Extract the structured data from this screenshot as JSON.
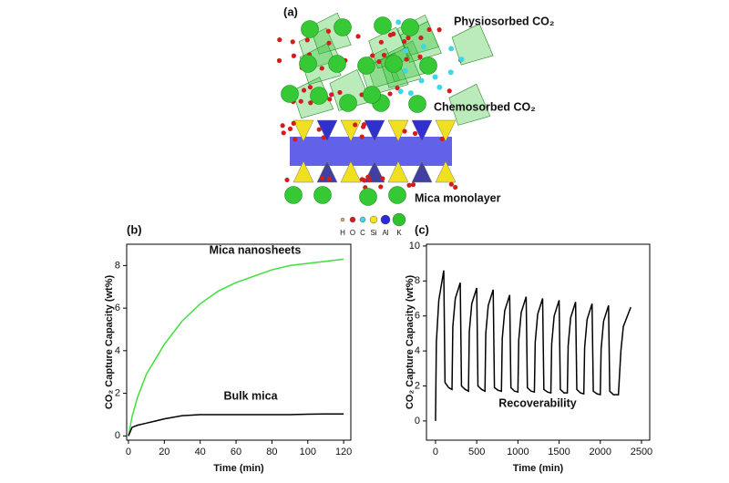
{
  "figure": {
    "panel_a": {
      "label": "(a)",
      "annotations": [
        "Physiosorbed CO₂",
        "Chemosorbed CO₂",
        "Mica monolayer"
      ],
      "legend": [
        {
          "label": "H",
          "color": "#c8b37a"
        },
        {
          "label": "O",
          "color": "#d41c1c"
        },
        {
          "label": "C",
          "color": "#3fd6e6"
        },
        {
          "label": "Si",
          "color": "#f2e21a"
        },
        {
          "label": "Al",
          "color": "#2a2ad8"
        },
        {
          "label": "K",
          "color": "#2fc42f"
        }
      ]
    }
  },
  "chart_data": [
    {
      "type": "line",
      "panel_label": "(b)",
      "xlabel": "Time (min)",
      "ylabel": "CO₂ Capture Capacity (wt%)",
      "x": [
        0,
        2,
        5,
        10,
        15,
        20,
        30,
        40,
        50,
        60,
        70,
        80,
        90,
        100,
        110,
        120
      ],
      "series": [
        {
          "name": "Mica nanosheets",
          "color": "#3ee03e",
          "values": [
            0,
            0.9,
            1.8,
            2.9,
            3.6,
            4.3,
            5.4,
            6.2,
            6.8,
            7.2,
            7.5,
            7.8,
            8.0,
            8.1,
            8.2,
            8.3
          ]
        },
        {
          "name": "Bulk mica",
          "color": "#000000",
          "values": [
            0,
            0.4,
            0.5,
            0.6,
            0.7,
            0.8,
            0.95,
            1.0,
            1.0,
            1.0,
            1.0,
            1.0,
            1.0,
            1.02,
            1.03,
            1.03
          ]
        }
      ],
      "xlim": [
        -1,
        124
      ],
      "ylim": [
        -0.2,
        9
      ],
      "xticks": [
        0,
        20,
        40,
        60,
        80,
        100,
        120
      ],
      "yticks": [
        0,
        2,
        4,
        6,
        8
      ]
    },
    {
      "type": "line",
      "panel_label": "(c)",
      "xlabel": "Time (min)",
      "ylabel": "CO₂ Capture Capacity (wt%)",
      "x": [
        0,
        10,
        40,
        100,
        115,
        160,
        200,
        210,
        240,
        300,
        315,
        360,
        400,
        410,
        440,
        500,
        515,
        560,
        600,
        610,
        640,
        700,
        715,
        760,
        800,
        810,
        840,
        900,
        915,
        960,
        1000,
        1010,
        1040,
        1100,
        1115,
        1160,
        1200,
        1210,
        1240,
        1300,
        1315,
        1360,
        1400,
        1410,
        1440,
        1500,
        1515,
        1560,
        1600,
        1610,
        1640,
        1700,
        1715,
        1760,
        1800,
        1810,
        1840,
        1900,
        1915,
        1960,
        2000,
        2010,
        2040,
        2100,
        2115,
        2160,
        2200,
        2220,
        2250,
        2280,
        2370
      ],
      "series": [
        {
          "name": "Recoverability",
          "color": "#000000",
          "values": [
            0,
            4.5,
            6.9,
            8.6,
            2.2,
            1.9,
            1.8,
            5.4,
            7.0,
            7.9,
            2.0,
            1.8,
            1.7,
            5.1,
            6.7,
            7.6,
            2.0,
            1.8,
            1.7,
            5.0,
            6.6,
            7.5,
            1.9,
            1.75,
            1.7,
            4.7,
            6.3,
            7.2,
            1.9,
            1.7,
            1.65,
            4.6,
            6.2,
            7.1,
            1.9,
            1.7,
            1.65,
            4.5,
            6.1,
            7.0,
            1.8,
            1.65,
            1.6,
            4.4,
            6.0,
            6.9,
            1.8,
            1.6,
            1.6,
            4.3,
            5.9,
            6.8,
            1.8,
            1.6,
            1.55,
            4.2,
            5.8,
            6.7,
            1.7,
            1.55,
            1.5,
            4.1,
            5.7,
            6.6,
            1.7,
            1.5,
            1.5,
            1.5,
            4.0,
            5.4,
            6.5
          ]
        }
      ],
      "xlim": [
        -110,
        2600
      ],
      "ylim": [
        -1.1,
        10.1
      ],
      "xticks": [
        0,
        500,
        1000,
        1500,
        2000,
        2500
      ],
      "yticks": [
        0,
        2,
        4,
        6,
        8,
        10
      ]
    }
  ]
}
